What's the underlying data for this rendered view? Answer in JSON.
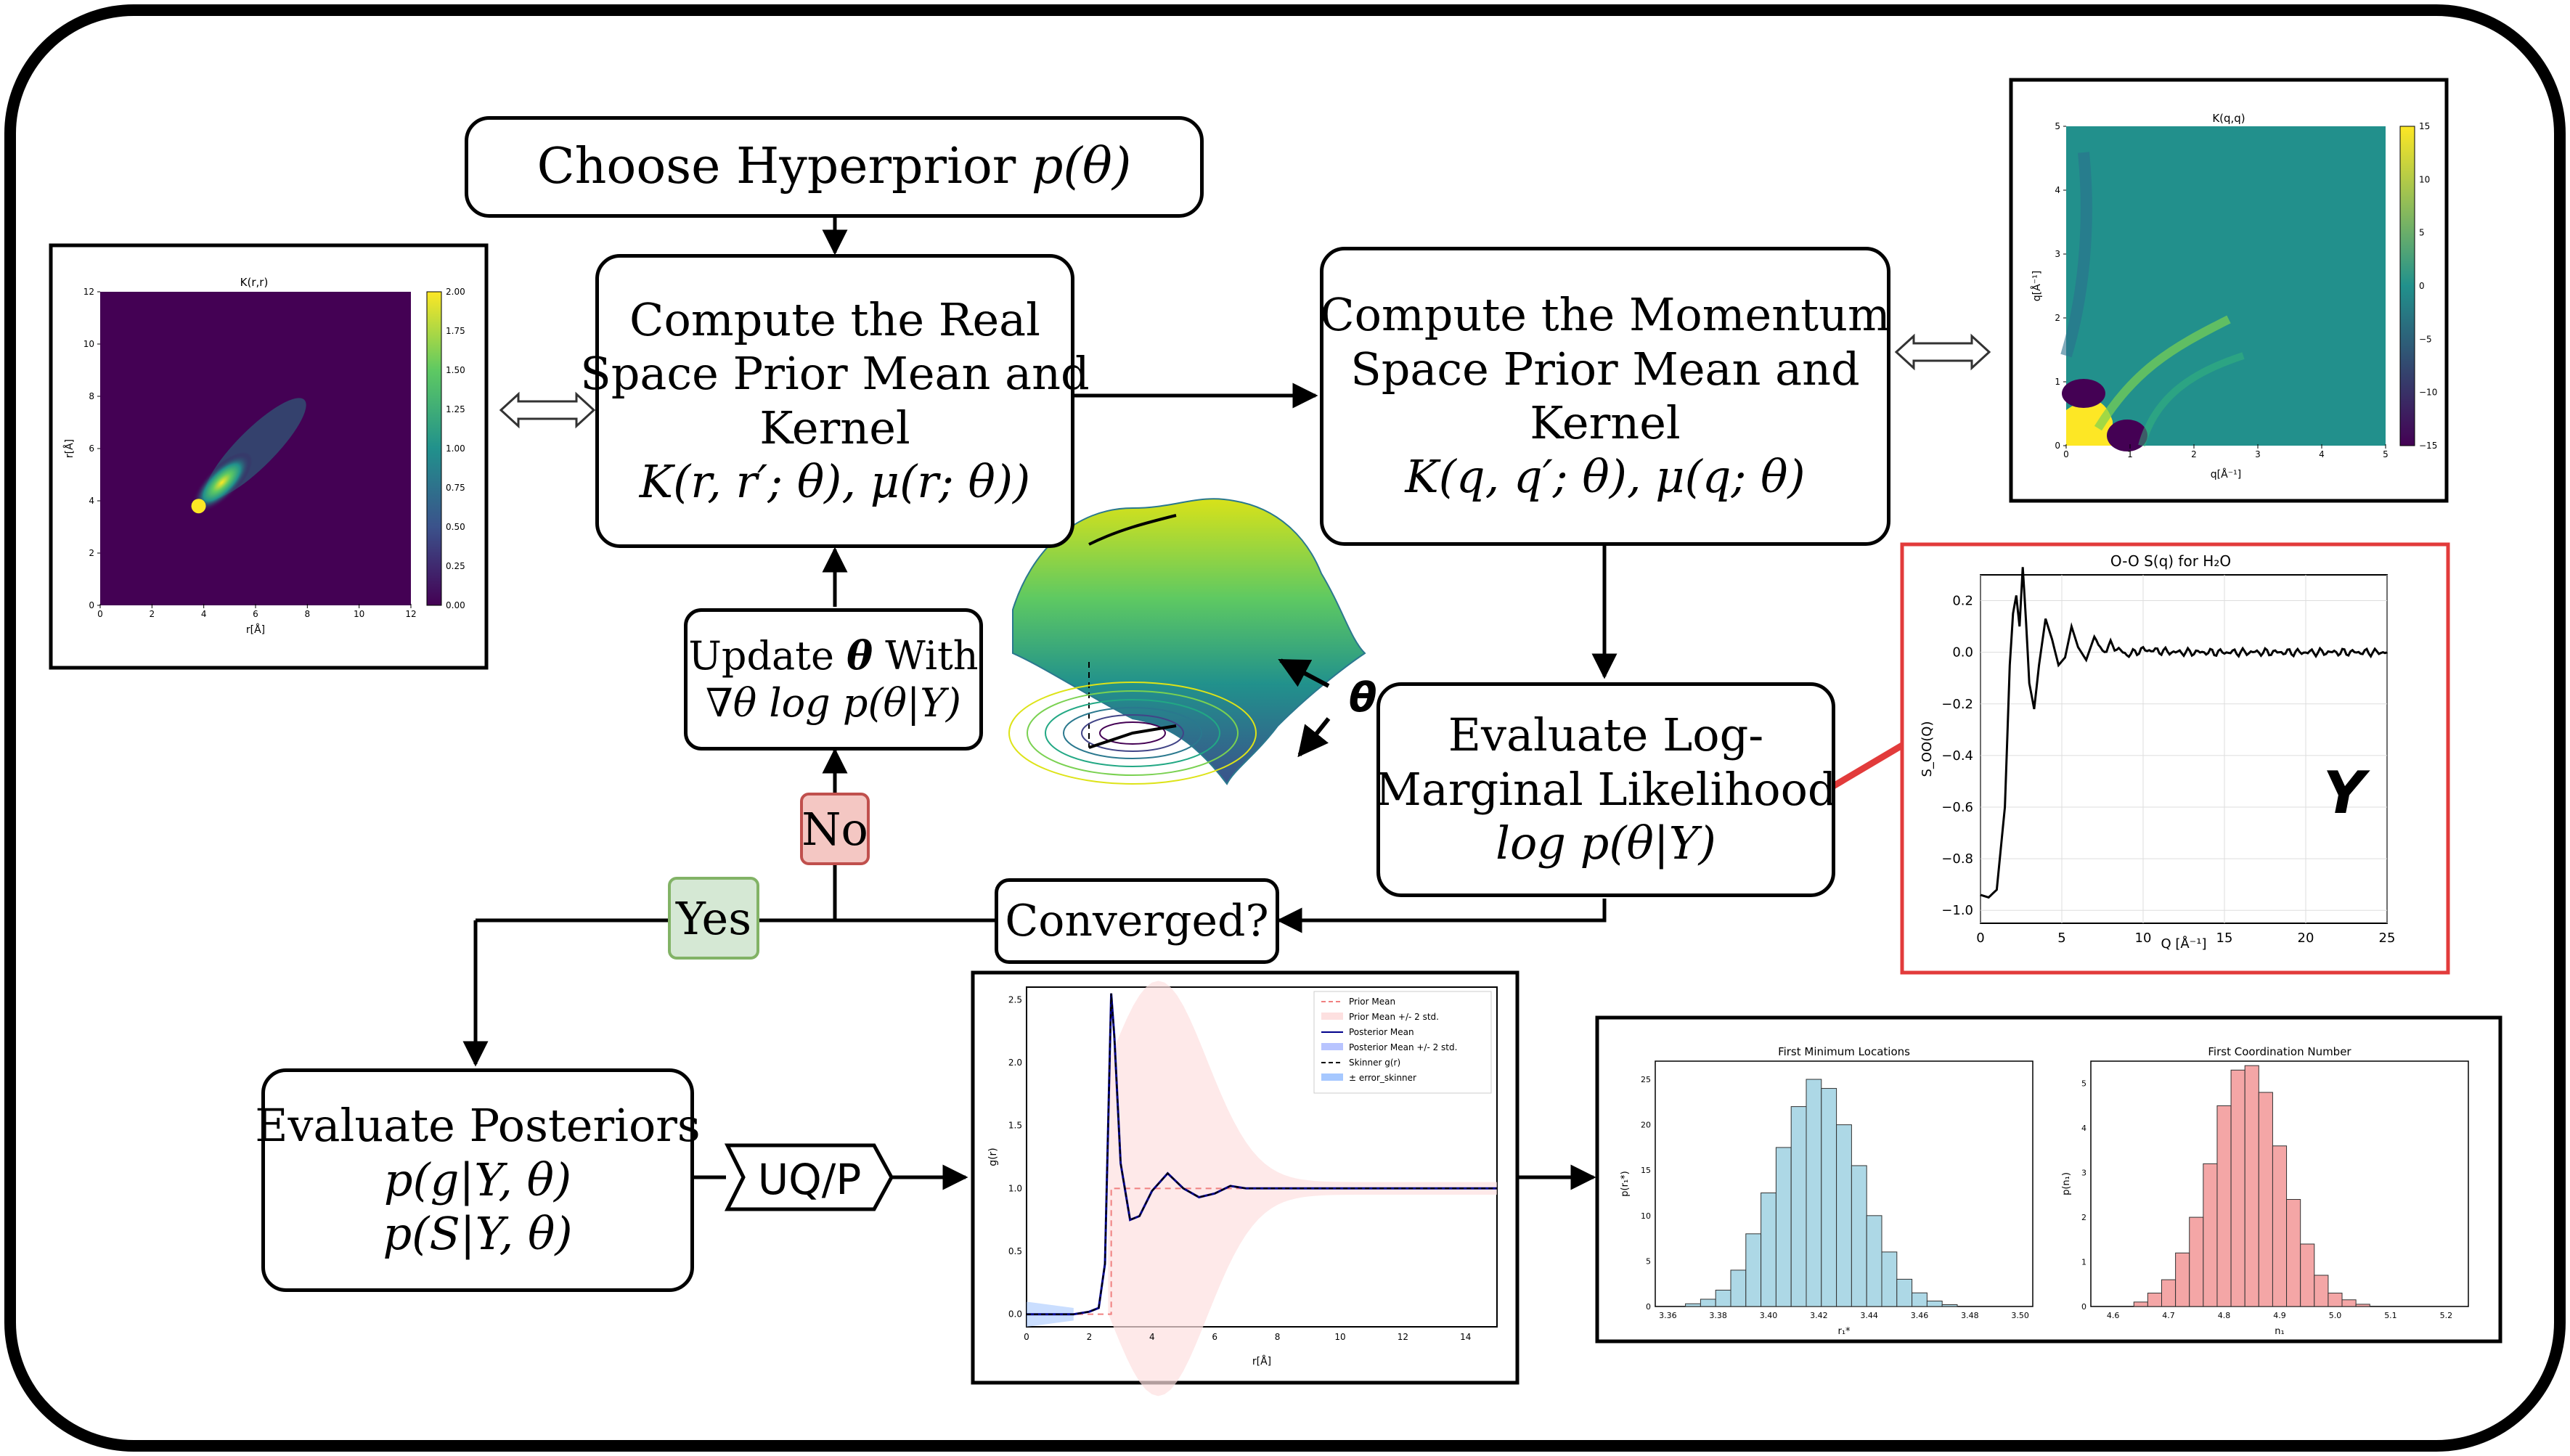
{
  "nodes": {
    "hyperprior": {
      "text": "Choose Hyperprior ",
      "math": "p(θ)"
    },
    "real_space": {
      "lines": [
        "Compute the Real",
        "Space Prior Mean and",
        "Kernel"
      ],
      "math": "K(r, r′; θ), μ(r; θ))"
    },
    "momentum_space": {
      "lines": [
        "Compute the Momentum",
        "Space Prior Mean and",
        "Kernel"
      ],
      "math": "K(q, q′; θ), μ(q; θ)"
    },
    "update": {
      "line1_text": "Update ",
      "line1_math": "θ",
      "line1_tail": " With",
      "line2_math": "∇θ log p(θ|Y)"
    },
    "evaluate_lml": {
      "lines": [
        "Evaluate Log-",
        "Marginal Likelihood"
      ],
      "math": "log p(θ|Y)"
    },
    "converged": {
      "text": "Converged?"
    },
    "posteriors": {
      "title": "Evaluate Posteriors",
      "math1": "p(g|Y, θ)",
      "math2": "p(S|Y, θ)"
    },
    "uqp": {
      "text": "UQ/P"
    }
  },
  "tags": {
    "no": "No",
    "yes": "Yes"
  },
  "theta_label": "θ",
  "y_label": "Y",
  "arrow_symbol": "⟺",
  "colors": {
    "no_fill": "#f4c7c3",
    "no_border": "#c0504d",
    "yes_fill": "#d5e8d4",
    "yes_border": "#82b366",
    "red": "#e23b3b"
  },
  "charts": {
    "k_rr": {
      "title": "K(r,r)",
      "xlabel": "r[Å]",
      "ylabel": "r[Å]",
      "xticks": [
        "0",
        "2",
        "4",
        "6",
        "8",
        "10",
        "12"
      ],
      "yticks": [
        "0",
        "2",
        "4",
        "6",
        "8",
        "10",
        "12"
      ],
      "colorbar_ticks": [
        "0.00",
        "0.25",
        "0.50",
        "0.75",
        "1.00",
        "1.25",
        "1.50",
        "1.75",
        "2.00"
      ]
    },
    "k_qq": {
      "title": "K(q,q)",
      "xlabel": "q[Å⁻¹]",
      "ylabel": "q[Å⁻¹]",
      "xticks": [
        "0",
        "1",
        "2",
        "3",
        "4",
        "5"
      ],
      "yticks": [
        "0",
        "1",
        "2",
        "3",
        "4",
        "5"
      ],
      "colorbar_ticks": [
        "15",
        "10",
        "5",
        "0",
        "−5",
        "−10",
        "−15"
      ]
    },
    "sq": {
      "title": "O-O S(q) for H₂O",
      "xlabel": "Q [Å⁻¹]",
      "ylabel": "S_OO(Q)",
      "xticks": [
        "0",
        "5",
        "10",
        "15",
        "20",
        "25"
      ],
      "yticks": [
        "0.2",
        "0.0",
        "−0.2",
        "−0.4",
        "−0.6",
        "−0.8",
        "−1.0"
      ]
    },
    "gr": {
      "xlabel": "r[Å]",
      "ylabel": "g(r)",
      "xticks": [
        "0",
        "2",
        "4",
        "6",
        "8",
        "10",
        "12",
        "14"
      ],
      "yticks": [
        "0.0",
        "0.5",
        "1.0",
        "1.5",
        "2.0",
        "2.5"
      ],
      "legend": [
        "Prior Mean",
        "Prior Mean +/- 2 std.",
        "Posterior Mean",
        "Posterior Mean +/- 2 std.",
        "Skinner g(r)",
        "± error_skinner"
      ]
    },
    "hist1": {
      "title": "First Minimum Locations",
      "xlabel": "r₁*",
      "ylabel": "p(r₁*)",
      "xticks": [
        "3.36",
        "3.38",
        "3.40",
        "3.42",
        "3.44",
        "3.46",
        "3.48",
        "3.50"
      ],
      "yticks": [
        "0",
        "5",
        "10",
        "15",
        "20",
        "25"
      ],
      "color": "#add8e6"
    },
    "hist2": {
      "title": "First Coordination Number",
      "xlabel": "n₁",
      "ylabel": "p(n₁)",
      "xticks": [
        "4.6",
        "4.7",
        "4.8",
        "4.9",
        "5.0",
        "5.1",
        "5.2"
      ],
      "yticks": [
        "0",
        "1",
        "2",
        "3",
        "4",
        "5"
      ],
      "color": "#f4a6a6"
    }
  },
  "chart_data": [
    {
      "type": "heatmap",
      "title": "K(r,r)",
      "xlabel": "r[Å]",
      "ylabel": "r[Å]",
      "xlim": [
        0,
        12
      ],
      "ylim": [
        0,
        12
      ],
      "colorbar_range": [
        0,
        2
      ],
      "peak": [
        3.8,
        3.8
      ],
      "peak_value": 2.0
    },
    {
      "type": "heatmap",
      "title": "K(q,q)",
      "xlabel": "q[Å⁻¹]",
      "ylabel": "q[Å⁻¹]",
      "xlim": [
        0,
        5
      ],
      "ylim": [
        0,
        5
      ],
      "colorbar_range": [
        -15,
        15
      ]
    },
    {
      "type": "line",
      "title": "O-O S(q) for H₂O",
      "xlabel": "Q [Å⁻¹]",
      "ylabel": "S_OO(Q)",
      "xlim": [
        0,
        25
      ],
      "ylim": [
        -1.05,
        0.3
      ],
      "x": [
        0,
        0.5,
        1,
        1.5,
        1.8,
        2.0,
        2.2,
        2.4,
        2.6,
        2.8,
        3.0,
        3.3,
        3.6,
        4.0,
        4.4,
        4.8,
        5.2,
        5.6,
        6.0,
        6.5,
        7.0,
        7.5,
        8,
        9,
        10,
        12,
        15,
        20,
        25
      ],
      "y": [
        -0.94,
        -0.95,
        -0.92,
        -0.6,
        -0.05,
        0.15,
        0.22,
        0.1,
        0.33,
        0.12,
        -0.12,
        -0.22,
        -0.05,
        0.13,
        0.05,
        -0.05,
        -0.02,
        0.1,
        0.02,
        -0.03,
        0.06,
        0.0,
        0.03,
        -0.01,
        0.01,
        0.0,
        0.0,
        0.0,
        0.0
      ]
    },
    {
      "type": "line",
      "xlabel": "r[Å]",
      "ylabel": "g(r)",
      "xlim": [
        0,
        15
      ],
      "ylim": [
        -0.1,
        2.6
      ],
      "x": [
        0,
        1.5,
        2.0,
        2.3,
        2.5,
        2.7,
        2.8,
        3.0,
        3.3,
        3.6,
        4.0,
        4.5,
        5.0,
        5.5,
        6.0,
        6.5,
        7.0,
        8,
        9,
        10,
        12,
        15
      ],
      "y": [
        0.0,
        0.0,
        0.02,
        0.05,
        0.4,
        2.55,
        2.2,
        1.2,
        0.75,
        0.78,
        0.98,
        1.12,
        1.0,
        0.93,
        0.96,
        1.02,
        1.0,
        1.0,
        1.0,
        1.0,
        1.0,
        1.0
      ],
      "legend": [
        "Prior Mean",
        "Prior Mean +/- 2 std.",
        "Posterior Mean",
        "Posterior Mean +/- 2 std.",
        "Skinner g(r)",
        "± error_skinner"
      ]
    },
    {
      "type": "bar",
      "title": "First Minimum Locations",
      "xlabel": "r₁*",
      "ylabel": "p(r₁*)",
      "xlim": [
        3.355,
        3.505
      ],
      "ylim": [
        0,
        27
      ],
      "categories": [
        3.37,
        3.376,
        3.382,
        3.388,
        3.394,
        3.4,
        3.406,
        3.412,
        3.418,
        3.424,
        3.43,
        3.436,
        3.442,
        3.448,
        3.454,
        3.46,
        3.466,
        3.472
      ],
      "values": [
        0.3,
        0.8,
        1.8,
        4,
        8,
        12.5,
        17.5,
        22,
        25,
        24,
        20,
        15.5,
        10,
        6,
        3,
        1.5,
        0.6,
        0.2
      ]
    },
    {
      "type": "bar",
      "title": "First Coordination Number",
      "xlabel": "n₁",
      "ylabel": "p(n₁)",
      "xlim": [
        4.56,
        5.24
      ],
      "ylim": [
        0,
        5.5
      ],
      "categories": [
        4.65,
        4.675,
        4.7,
        4.725,
        4.75,
        4.775,
        4.8,
        4.825,
        4.85,
        4.875,
        4.9,
        4.925,
        4.95,
        4.975,
        5.0,
        5.025,
        5.05
      ],
      "values": [
        0.1,
        0.3,
        0.6,
        1.2,
        2.0,
        3.2,
        4.5,
        5.3,
        5.4,
        4.8,
        3.6,
        2.4,
        1.4,
        0.7,
        0.3,
        0.15,
        0.05
      ]
    }
  ]
}
